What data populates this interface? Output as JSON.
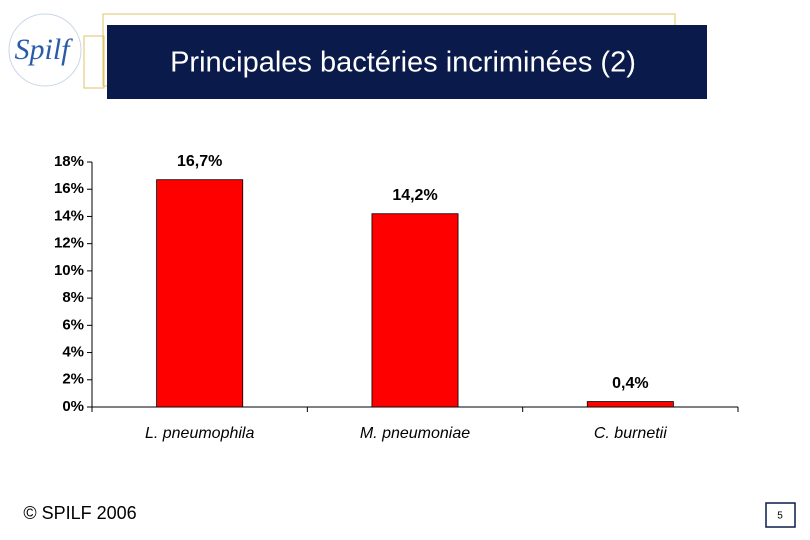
{
  "logo": "Spilf",
  "footer": "© SPILF 2006",
  "page_number": "5",
  "chart_data": {
    "type": "bar",
    "title": "Principales bactéries incriminées (2)",
    "categories": [
      "L. pneumophila",
      "M. pneumoniae",
      "C. burnetii"
    ],
    "values": [
      16.7,
      14.2,
      0.4
    ],
    "value_labels": [
      "16,7%",
      "14,2%",
      "0,4%"
    ],
    "color": "#ff0000",
    "ylim": [
      0,
      18
    ],
    "yticks": [
      {
        "value": 0,
        "label": "0%"
      },
      {
        "value": 2,
        "label": "2%"
      },
      {
        "value": 4,
        "label": "4%"
      },
      {
        "value": 6,
        "label": "6%"
      },
      {
        "value": 8,
        "label": "8%"
      },
      {
        "value": 10,
        "label": "10%"
      },
      {
        "value": 12,
        "label": "12%"
      },
      {
        "value": 14,
        "label": "14%"
      },
      {
        "value": 16,
        "label": "16%"
      },
      {
        "value": 18,
        "label": "18%"
      }
    ],
    "grid": false
  }
}
